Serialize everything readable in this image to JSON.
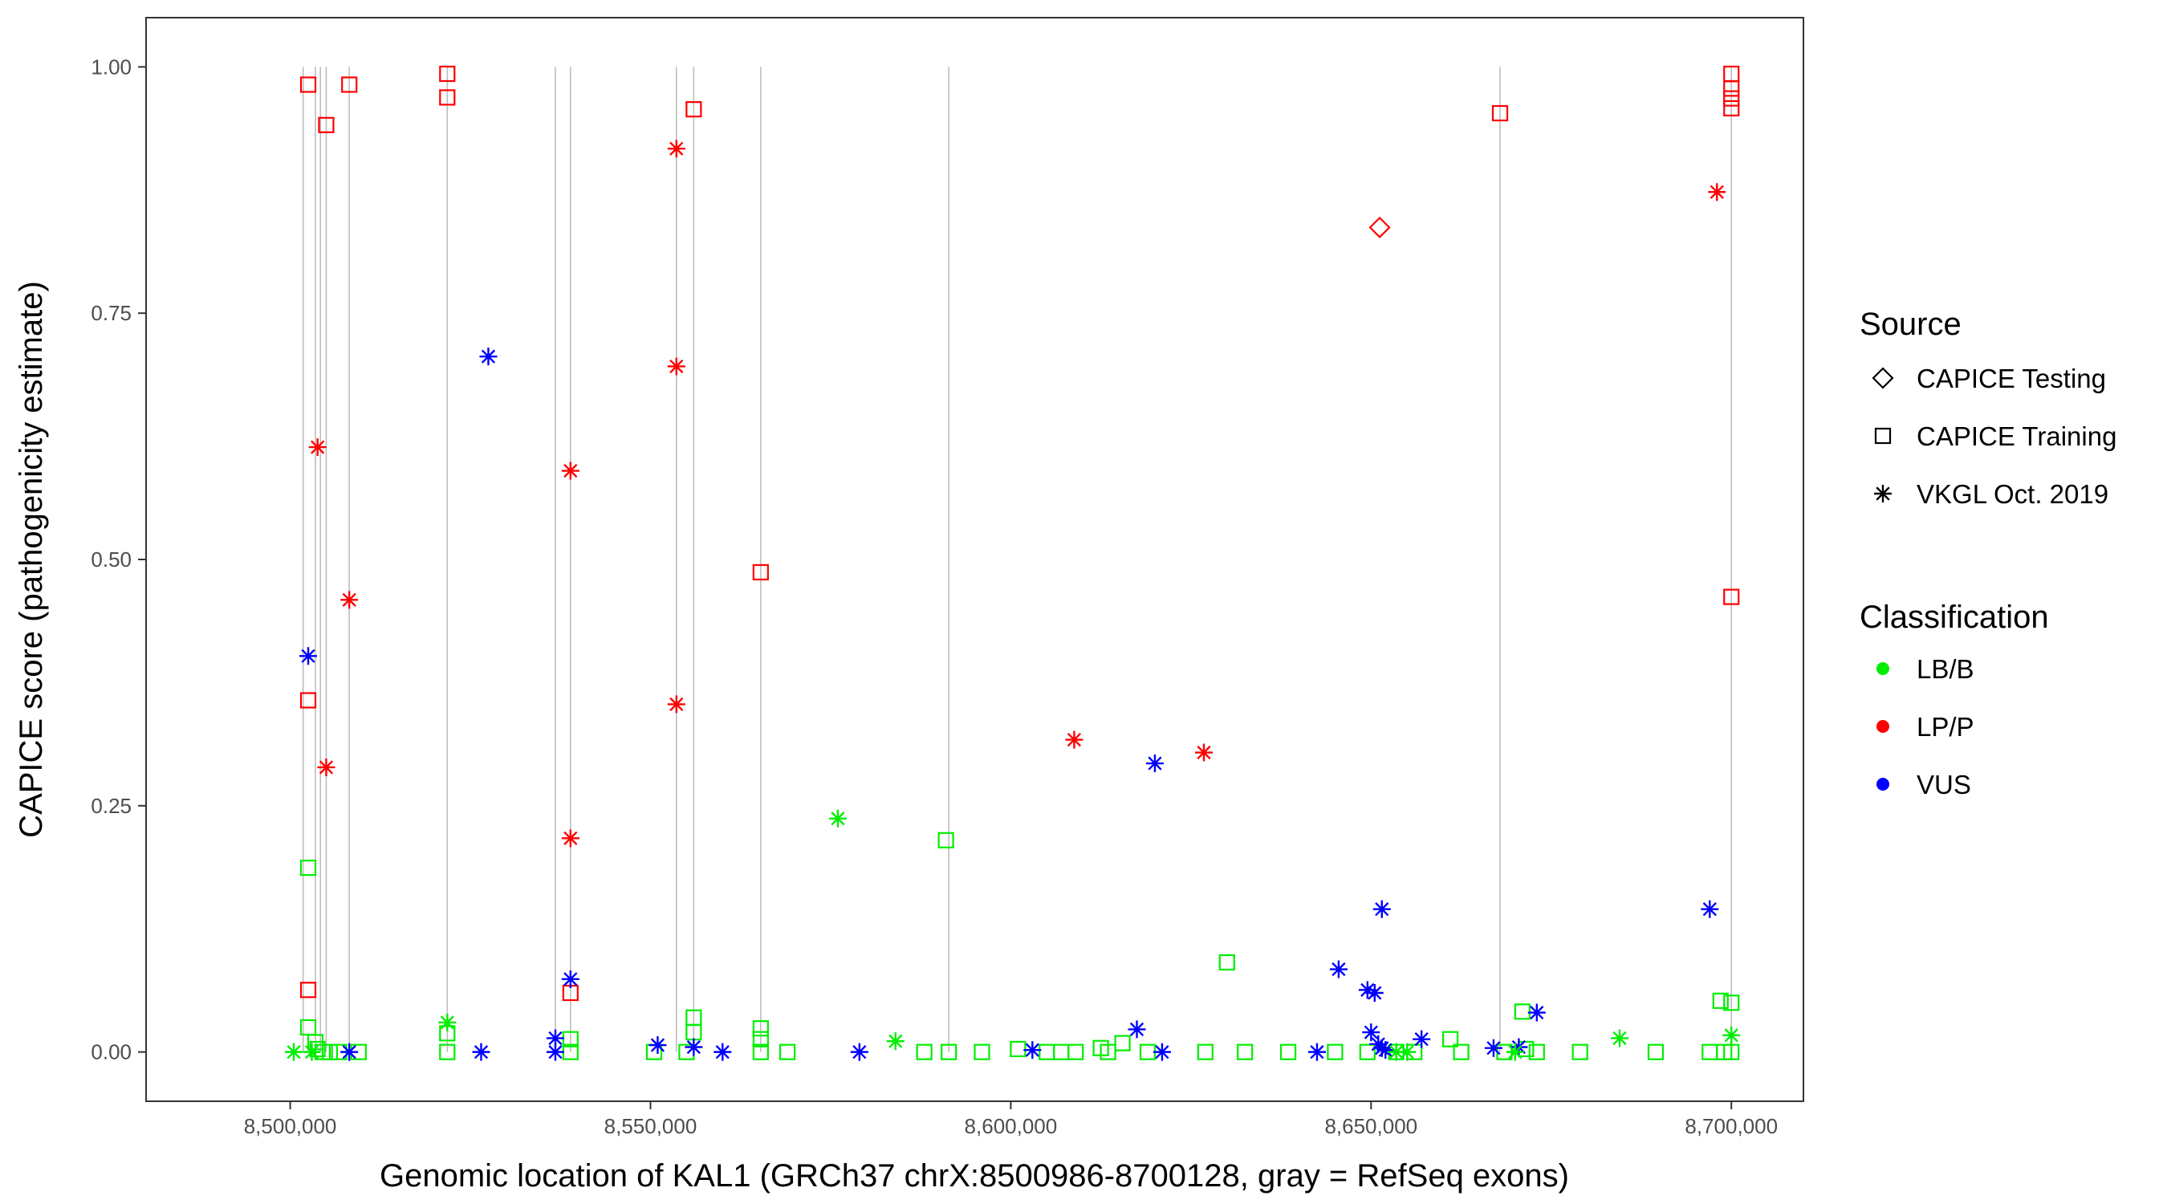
{
  "chart_data": {
    "type": "scatter",
    "title": "",
    "xlabel": "Genomic location of KAL1 (GRCh37 chrX:8500986-8700128, gray = RefSeq exons)",
    "ylabel": "CAPICE score (pathogenicity estimate)",
    "xlim": [
      8480000,
      8710000
    ],
    "ylim": [
      -0.05,
      1.05
    ],
    "x_ticks": [
      8500000,
      8550000,
      8600000,
      8650000,
      8700000
    ],
    "x_tick_labels": [
      "8,500,000",
      "8,550,000",
      "8,600,000",
      "8,650,000",
      "8,700,000"
    ],
    "y_ticks": [
      0.0,
      0.25,
      0.5,
      0.75,
      1.0
    ],
    "y_tick_labels": [
      "0.00",
      "0.25",
      "0.50",
      "0.75",
      "1.00"
    ],
    "grid": false,
    "exons": [
      8501800,
      8503500,
      8504200,
      8505000,
      8508200,
      8521800,
      8536800,
      8538900,
      8553600,
      8556000,
      8565300,
      8591400,
      8667900,
      8700000
    ],
    "legend": {
      "position": "right",
      "source_title": "Source",
      "source_entries": [
        {
          "label": "CAPICE Testing",
          "shape": "diamond"
        },
        {
          "label": "CAPICE Training",
          "shape": "square"
        },
        {
          "label": "VKGL Oct. 2019",
          "shape": "asterisk"
        }
      ],
      "class_title": "Classification",
      "class_entries": [
        {
          "label": "LB/B",
          "color": "#00ee00"
        },
        {
          "label": "LP/P",
          "color": "#ff0000"
        },
        {
          "label": "VUS",
          "color": "#0000ff"
        }
      ]
    },
    "colors": {
      "LB/B": "#00ee00",
      "LP/P": "#ff0000",
      "VUS": "#0000ff"
    },
    "series": [
      {
        "source": "CAPICE Testing",
        "classification": "LP/P",
        "points": [
          [
            8651200,
            0.837
          ]
        ]
      },
      {
        "source": "CAPICE Training",
        "classification": "LP/P",
        "points": [
          [
            8502500,
            0.982
          ],
          [
            8508200,
            0.982
          ],
          [
            8505000,
            0.941
          ],
          [
            8521800,
            0.993
          ],
          [
            8521800,
            0.969
          ],
          [
            8556000,
            0.957
          ],
          [
            8502500,
            0.357
          ],
          [
            8502500,
            0.063
          ],
          [
            8538900,
            0.06
          ],
          [
            8565300,
            0.487
          ],
          [
            8667900,
            0.953
          ],
          [
            8700000,
            0.993
          ],
          [
            8700000,
            0.978
          ],
          [
            8700000,
            0.968
          ],
          [
            8700000,
            0.958
          ],
          [
            8700000,
            0.462
          ]
        ]
      },
      {
        "source": "CAPICE Training",
        "classification": "LB/B",
        "points": [
          [
            8502500,
            0.187
          ],
          [
            8502500,
            0.025
          ],
          [
            8503500,
            0.01
          ],
          [
            8503800,
            0.003
          ],
          [
            8504500,
            0.0
          ],
          [
            8505500,
            0.0
          ],
          [
            8506800,
            0.0
          ],
          [
            8509500,
            0.0
          ],
          [
            8521800,
            0.019
          ],
          [
            8521800,
            0.0
          ],
          [
            8538900,
            0.013
          ],
          [
            8538900,
            0.0
          ],
          [
            8550500,
            0.0
          ],
          [
            8555000,
            0.0
          ],
          [
            8556000,
            0.035
          ],
          [
            8556000,
            0.02
          ],
          [
            8565300,
            0.024
          ],
          [
            8565300,
            0.013
          ],
          [
            8565300,
            0.0
          ],
          [
            8569000,
            0.0
          ],
          [
            8588000,
            0.0
          ],
          [
            8591400,
            0.0
          ],
          [
            8591000,
            0.215
          ],
          [
            8596000,
            0.0
          ],
          [
            8601000,
            0.003
          ],
          [
            8605000,
            0.0
          ],
          [
            8607000,
            0.0
          ],
          [
            8609000,
            0.0
          ],
          [
            8612500,
            0.004
          ],
          [
            8613500,
            0.0
          ],
          [
            8615500,
            0.009
          ],
          [
            8619000,
            0.0
          ],
          [
            8627000,
            0.0
          ],
          [
            8630000,
            0.091
          ],
          [
            8632500,
            0.0
          ],
          [
            8638500,
            0.0
          ],
          [
            8645000,
            0.0
          ],
          [
            8649500,
            0.0
          ],
          [
            8653500,
            0.0
          ],
          [
            8656000,
            0.0
          ],
          [
            8661000,
            0.013
          ],
          [
            8662500,
            0.0
          ],
          [
            8668500,
            0.0
          ],
          [
            8671000,
            0.041
          ],
          [
            8671500,
            0.003
          ],
          [
            8673000,
            0.0
          ],
          [
            8679000,
            0.0
          ],
          [
            8689500,
            0.0
          ],
          [
            8697000,
            0.0
          ],
          [
            8698500,
            0.052
          ],
          [
            8700000,
            0.05
          ],
          [
            8700000,
            0.0
          ],
          [
            8699000,
            0.0
          ]
        ]
      },
      {
        "source": "VKGL Oct. 2019",
        "classification": "LP/P",
        "points": [
          [
            8503800,
            0.614
          ],
          [
            8505000,
            0.289
          ],
          [
            8508200,
            0.459
          ],
          [
            8538900,
            0.59
          ],
          [
            8538900,
            0.217
          ],
          [
            8553600,
            0.917
          ],
          [
            8553600,
            0.696
          ],
          [
            8553600,
            0.353
          ],
          [
            8608800,
            0.317
          ],
          [
            8626800,
            0.304
          ],
          [
            8698000,
            0.873
          ]
        ]
      },
      {
        "source": "VKGL Oct. 2019",
        "classification": "VUS",
        "points": [
          [
            8502500,
            0.402
          ],
          [
            8527500,
            0.706
          ],
          [
            8508200,
            0.0
          ],
          [
            8526500,
            0.0
          ],
          [
            8536800,
            0.014
          ],
          [
            8536800,
            0.0
          ],
          [
            8538900,
            0.074
          ],
          [
            8551000,
            0.007
          ],
          [
            8556000,
            0.005
          ],
          [
            8560000,
            0.0
          ],
          [
            8579000,
            0.0
          ],
          [
            8603000,
            0.002
          ],
          [
            8617500,
            0.023
          ],
          [
            8620000,
            0.293
          ],
          [
            8621000,
            0.0
          ],
          [
            8642500,
            0.0
          ],
          [
            8645500,
            0.084
          ],
          [
            8649500,
            0.063
          ],
          [
            8650500,
            0.06
          ],
          [
            8650000,
            0.02
          ],
          [
            8651500,
            0.145
          ],
          [
            8651000,
            0.008
          ],
          [
            8651500,
            0.004
          ],
          [
            8652000,
            0.002
          ],
          [
            8657000,
            0.013
          ],
          [
            8667000,
            0.004
          ],
          [
            8670500,
            0.005
          ],
          [
            8673000,
            0.04
          ],
          [
            8697000,
            0.145
          ]
        ]
      },
      {
        "source": "VKGL Oct. 2019",
        "classification": "LB/B",
        "points": [
          [
            8500500,
            0.0
          ],
          [
            8503000,
            0.0
          ],
          [
            8521800,
            0.03
          ],
          [
            8576000,
            0.237
          ],
          [
            8584000,
            0.011
          ],
          [
            8653500,
            0.0
          ],
          [
            8655000,
            0.0
          ],
          [
            8670000,
            0.0
          ],
          [
            8684500,
            0.014
          ],
          [
            8700000,
            0.017
          ]
        ]
      }
    ]
  }
}
